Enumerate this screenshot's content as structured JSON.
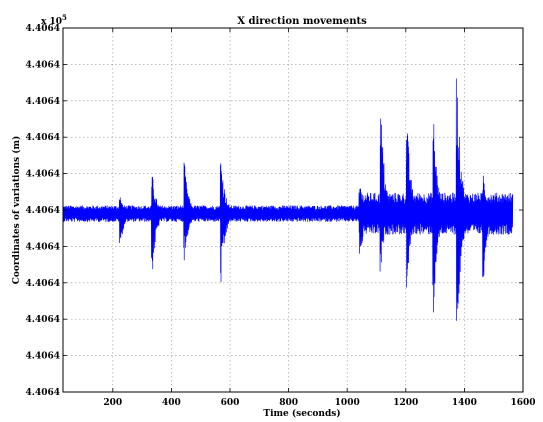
{
  "chart_data": {
    "type": "line",
    "title": "X direction movements",
    "xlabel": "Time (seconds)",
    "ylabel": "Coordinates of variations (m)",
    "y_exponent_label": "x 10",
    "y_exponent_power": "5",
    "xlim": [
      30,
      1600
    ],
    "ylim": [
      0,
      10
    ],
    "x_ticks": [
      200,
      400,
      600,
      800,
      1000,
      1200,
      1400,
      1600
    ],
    "x_tick_labels": [
      "200",
      "400",
      "600",
      "800",
      "1000",
      "1200",
      "1400",
      "1600"
    ],
    "y_ticks": [
      0,
      1,
      2,
      3,
      4,
      5,
      6,
      7,
      8,
      9,
      10
    ],
    "y_tick_labels": [
      "4.4064",
      "4.4064",
      "4.4064",
      "4.4064",
      "4.4064",
      "4.4064",
      "4.4064",
      "4.4064",
      "4.4064",
      "4.4064",
      "4.4064"
    ],
    "grid": true,
    "legend": "none",
    "series": [
      {
        "color": "#0000ff",
        "x_start": 30,
        "x_end": 1565,
        "baseline": 4.9,
        "noise_amplitude": 0.22,
        "events": [
          {
            "x": 225,
            "min": 3.9,
            "max": 5.4
          },
          {
            "x": 335,
            "min": 3.2,
            "max": 6.0
          },
          {
            "x": 445,
            "min": 3.6,
            "max": 6.3
          },
          {
            "x": 570,
            "min": 2.9,
            "max": 6.5
          },
          {
            "x": 1045,
            "min": 3.6,
            "max": 5.8
          },
          {
            "x": 1115,
            "min": 3.2,
            "max": 7.9
          },
          {
            "x": 1205,
            "min": 2.8,
            "max": 7.4
          },
          {
            "x": 1295,
            "min": 2.1,
            "max": 7.6
          },
          {
            "x": 1375,
            "min": 1.2,
            "max": 8.8
          },
          {
            "x": 1465,
            "min": 3.0,
            "max": 6.1
          }
        ]
      }
    ]
  }
}
